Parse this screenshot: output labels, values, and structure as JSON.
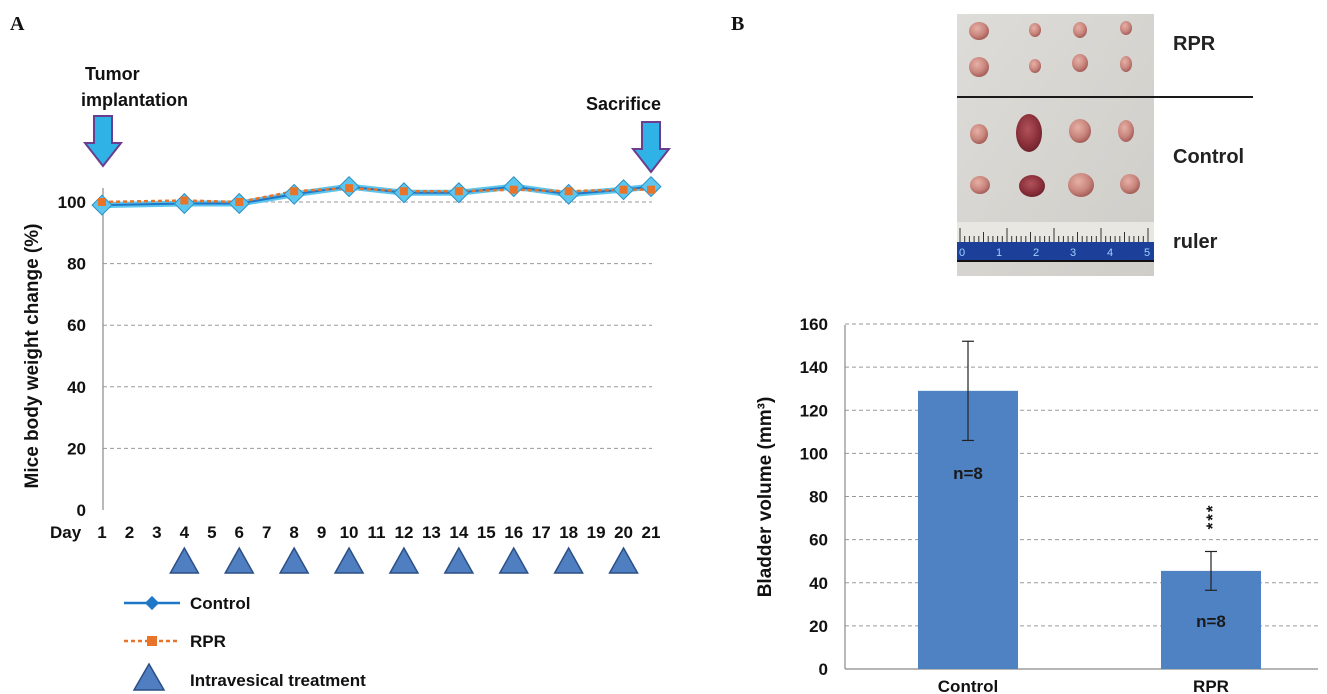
{
  "panels": {
    "a": "A",
    "b": "B"
  },
  "chart_data": [
    {
      "type": "line",
      "ylabel": "Mice body weight change (%)",
      "x_prefix": "Day",
      "x": [
        1,
        2,
        3,
        4,
        5,
        6,
        7,
        8,
        9,
        10,
        11,
        12,
        13,
        14,
        15,
        16,
        17,
        18,
        19,
        20,
        21
      ],
      "ylim": [
        0,
        110
      ],
      "yticks": [
        0,
        20,
        40,
        60,
        80,
        100
      ],
      "grid": true,
      "series": [
        {
          "name": "Control",
          "color": "#1f77c8",
          "x": [
            1,
            4,
            6,
            8,
            10,
            12,
            14,
            16,
            18,
            20,
            21
          ],
          "values": [
            99,
            99.5,
            99.5,
            102.5,
            105,
            103,
            103,
            105,
            102.5,
            104,
            105
          ]
        },
        {
          "name": "RPR",
          "color": "#e8742a",
          "x": [
            1,
            4,
            6,
            8,
            10,
            12,
            14,
            16,
            18,
            20,
            21
          ],
          "values": [
            100,
            100.5,
            100,
            103.5,
            104.5,
            103.5,
            103.5,
            104,
            103.5,
            104,
            104
          ]
        }
      ],
      "treatment_days": [
        4,
        6,
        8,
        10,
        12,
        14,
        16,
        18,
        20
      ],
      "annotations": {
        "start": "Tumor implantation",
        "start_day": 1,
        "end": "Sacrifice",
        "end_day": 21
      },
      "legend": [
        "Control",
        "RPR",
        "Intravesical treatment"
      ],
      "legend_position": "bottom-left"
    },
    {
      "type": "bar",
      "categories": [
        "Control",
        "RPR"
      ],
      "values": [
        129,
        45.5
      ],
      "errors": [
        23,
        9
      ],
      "bar_labels": [
        "n=8",
        "n=8"
      ],
      "significance": [
        "",
        "***"
      ],
      "ylabel": "Bladder volume (mm³)",
      "ylim": [
        0,
        160
      ],
      "yticks": [
        0,
        20,
        40,
        60,
        80,
        100,
        120,
        140,
        160
      ],
      "grid": true,
      "bar_color": "#4f82c3"
    }
  ],
  "photo": {
    "labels": [
      "RPR",
      "Control",
      "ruler"
    ],
    "ruler_numbers": [
      "0",
      "1",
      "2",
      "3",
      "4",
      "5"
    ]
  }
}
